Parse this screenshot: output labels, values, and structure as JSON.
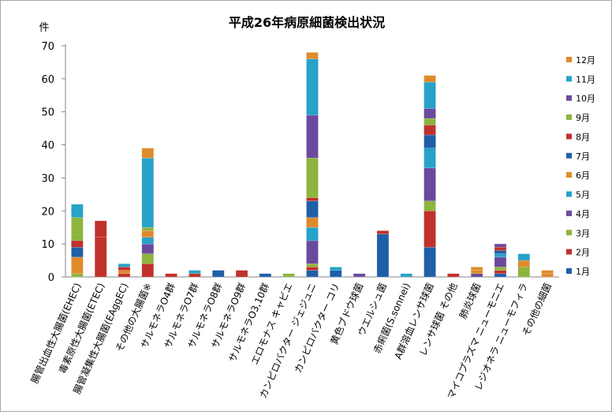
{
  "chart_data": {
    "type": "bar",
    "stacked": true,
    "title": "平成26年病原細菌検出状況",
    "ylabel": "件",
    "ylim": [
      0,
      70
    ],
    "yticks": [
      0,
      10,
      20,
      30,
      40,
      50,
      60,
      70
    ],
    "grid": false,
    "legend_position": "right",
    "categories": [
      "腸管出血性大腸菌(EHEC)",
      "毒素原性大腸菌(ETEC)",
      "腸管凝集性大腸菌(EAggEC)",
      "その他の大腸菌※",
      "サルモネラO4群",
      "サルモネラO7群",
      "サルモネラO8群",
      "サルモネラO9群",
      "サルモネラO3,10群",
      "エロモナス キャビエ",
      "カンピロバクター ジェジュニ",
      "カンピロバクター コリ",
      "黄色ブドウ球菌",
      "ウエルシュ菌",
      "赤痢菌(S.sonnei)",
      "A群溶血レンサ球菌",
      "レンサ球菌 その他",
      "肺炎球菌",
      "マイコプラズマ ニューモニエ",
      "レジオネラ ニューモフィラ",
      "その他の細菌"
    ],
    "series": [
      {
        "name": "1月",
        "color": "#1f5fa8",
        "values": [
          0,
          0,
          0,
          0,
          0,
          0,
          0,
          0,
          1,
          0,
          2,
          0,
          0,
          13,
          0,
          9,
          0,
          0,
          1,
          0,
          0
        ]
      },
      {
        "name": "2月",
        "color": "#c0312b",
        "values": [
          0,
          12,
          1,
          4,
          1,
          1,
          0,
          2,
          0,
          0,
          1,
          0,
          0,
          0,
          0,
          11,
          1,
          0,
          1,
          0,
          0
        ]
      },
      {
        "name": "3月",
        "color": "#8db43d",
        "values": [
          1,
          0,
          0,
          3,
          0,
          0,
          0,
          0,
          0,
          1,
          1,
          0,
          0,
          0,
          0,
          3,
          0,
          0,
          1,
          3,
          0
        ]
      },
      {
        "name": "4月",
        "color": "#6a4a9c",
        "values": [
          0,
          0,
          0,
          3,
          0,
          0,
          0,
          0,
          0,
          0,
          7,
          0,
          1,
          0,
          0,
          10,
          0,
          1,
          3,
          0,
          0
        ]
      },
      {
        "name": "5月",
        "color": "#27a2c8",
        "values": [
          0,
          0,
          0,
          2,
          0,
          0,
          0,
          0,
          0,
          0,
          4,
          0,
          0,
          0,
          0,
          6,
          0,
          0,
          1,
          0,
          0
        ]
      },
      {
        "name": "6月",
        "color": "#e08a2c",
        "values": [
          5,
          0,
          1,
          2,
          0,
          0,
          0,
          0,
          0,
          0,
          3,
          0,
          0,
          0,
          0,
          0,
          0,
          1,
          0,
          2,
          1
        ]
      },
      {
        "name": "7月",
        "color": "#1f5fa8",
        "values": [
          3,
          0,
          0,
          0,
          0,
          0,
          2,
          0,
          0,
          0,
          5,
          2,
          0,
          0,
          0,
          4,
          0,
          0,
          1,
          0,
          0
        ]
      },
      {
        "name": "8月",
        "color": "#c0312b",
        "values": [
          2,
          5,
          1,
          0,
          0,
          0,
          0,
          0,
          0,
          0,
          1,
          0,
          0,
          1,
          0,
          3,
          0,
          0,
          1,
          0,
          0
        ]
      },
      {
        "name": "9月",
        "color": "#8db43d",
        "values": [
          7,
          0,
          0,
          1,
          0,
          0,
          0,
          0,
          0,
          0,
          12,
          0,
          0,
          0,
          0,
          2,
          0,
          0,
          0,
          0,
          0
        ]
      },
      {
        "name": "10月",
        "color": "#6a4a9c",
        "values": [
          0,
          0,
          0,
          0,
          0,
          0,
          0,
          0,
          0,
          0,
          13,
          0,
          0,
          0,
          0,
          3,
          0,
          0,
          1,
          0,
          0
        ]
      },
      {
        "name": "11月",
        "color": "#27a2c8",
        "values": [
          4,
          0,
          1,
          21,
          0,
          1,
          0,
          0,
          0,
          0,
          17,
          1,
          0,
          0,
          1,
          8,
          0,
          0,
          0,
          2,
          0
        ]
      },
      {
        "name": "12月",
        "color": "#e08a2c",
        "values": [
          0,
          0,
          0,
          3,
          0,
          0,
          0,
          0,
          0,
          0,
          2,
          0,
          0,
          0,
          0,
          2,
          0,
          1,
          0,
          0,
          1
        ]
      }
    ]
  }
}
